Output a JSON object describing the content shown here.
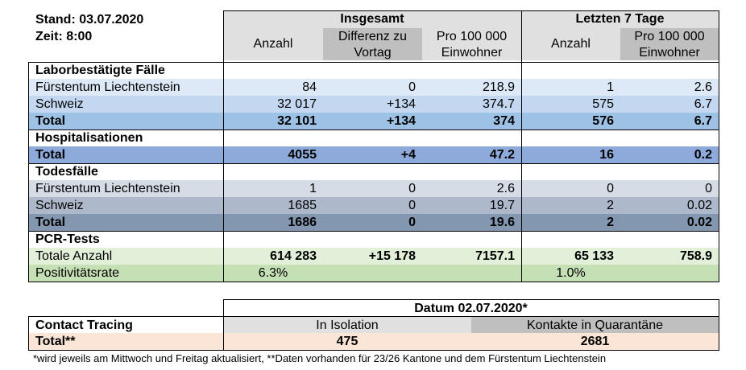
{
  "stand": "Stand: 03.07.2020",
  "zeit": "Zeit: 8:00",
  "header": {
    "group_total": "Insgesamt",
    "group_7days": "Letzten 7 Tage",
    "col_anzahl": "Anzahl",
    "col_diff_1": "Differenz zu",
    "col_diff_2": "Vortag",
    "col_pro_1": "Pro 100 000",
    "col_pro_2": "Einwohner",
    "col7_anzahl": "Anzahl",
    "col7_pro_1": "Pro 100 000",
    "col7_pro_2": "Einwohner"
  },
  "sections": {
    "labor": "Laborbestätigte Fälle",
    "hosp": "Hospitalisationen",
    "tod": "Todesfälle",
    "pcr": "PCR-Tests"
  },
  "rows": {
    "labor_fl": [
      "Fürstentum Liechtenstein",
      "84",
      "0",
      "218.9",
      "1",
      "2.6"
    ],
    "labor_ch": [
      "Schweiz",
      "32 017",
      "+134",
      "374.7",
      "575",
      "6.7"
    ],
    "labor_total": [
      "Total",
      "32 101",
      "+134",
      "374",
      "576",
      "6.7"
    ],
    "hosp_total": [
      "Total",
      "4055",
      "+4",
      "47.2",
      "16",
      "0.2"
    ],
    "tod_fl": [
      "Fürstentum Liechtenstein",
      "1",
      "0",
      "2.6",
      "0",
      "0"
    ],
    "tod_ch": [
      "Schweiz",
      "1685",
      "0",
      "19.7",
      "2",
      "0.02"
    ],
    "tod_total": [
      "Total",
      "1686",
      "0",
      "19.6",
      "2",
      "0.02"
    ],
    "pcr_total": [
      "Totale Anzahl",
      "614 283",
      "+15 178",
      "7157.1",
      "65 133",
      "758.9"
    ],
    "pcr_pos": [
      "Positivitätsrate",
      "6.3%",
      "1.0%"
    ]
  },
  "contact": {
    "date": "Datum 02.07.2020*",
    "label": "Contact Tracing",
    "col_isolation": "In Isolation",
    "col_quarantine": "Kontakte in Quarantäne",
    "total_label": "Total**",
    "isolation_value": "475",
    "quarantine_value": "2681"
  },
  "footnote": "*wird jeweils am Mittwoch und Freitag aktualisiert, **Daten vorhanden für 23/26 Kantone und dem Fürstentum Liechtenstein",
  "colors": {
    "header_light": "#e0e0e0",
    "header_dark": "#bfbfbf",
    "labor_fl": "#dde9f7",
    "labor_ch": "#c3d8f0",
    "labor_total": "#9ec2e6",
    "hosp_total": "#8eaadb",
    "tod_fl": "#d6dce5",
    "tod_ch": "#adb9ca",
    "tod_total": "#8497b0",
    "pcr_total": "#e2f0d9",
    "pcr_pos": "#c5e0b4",
    "contact_total": "#fbe5d6"
  }
}
